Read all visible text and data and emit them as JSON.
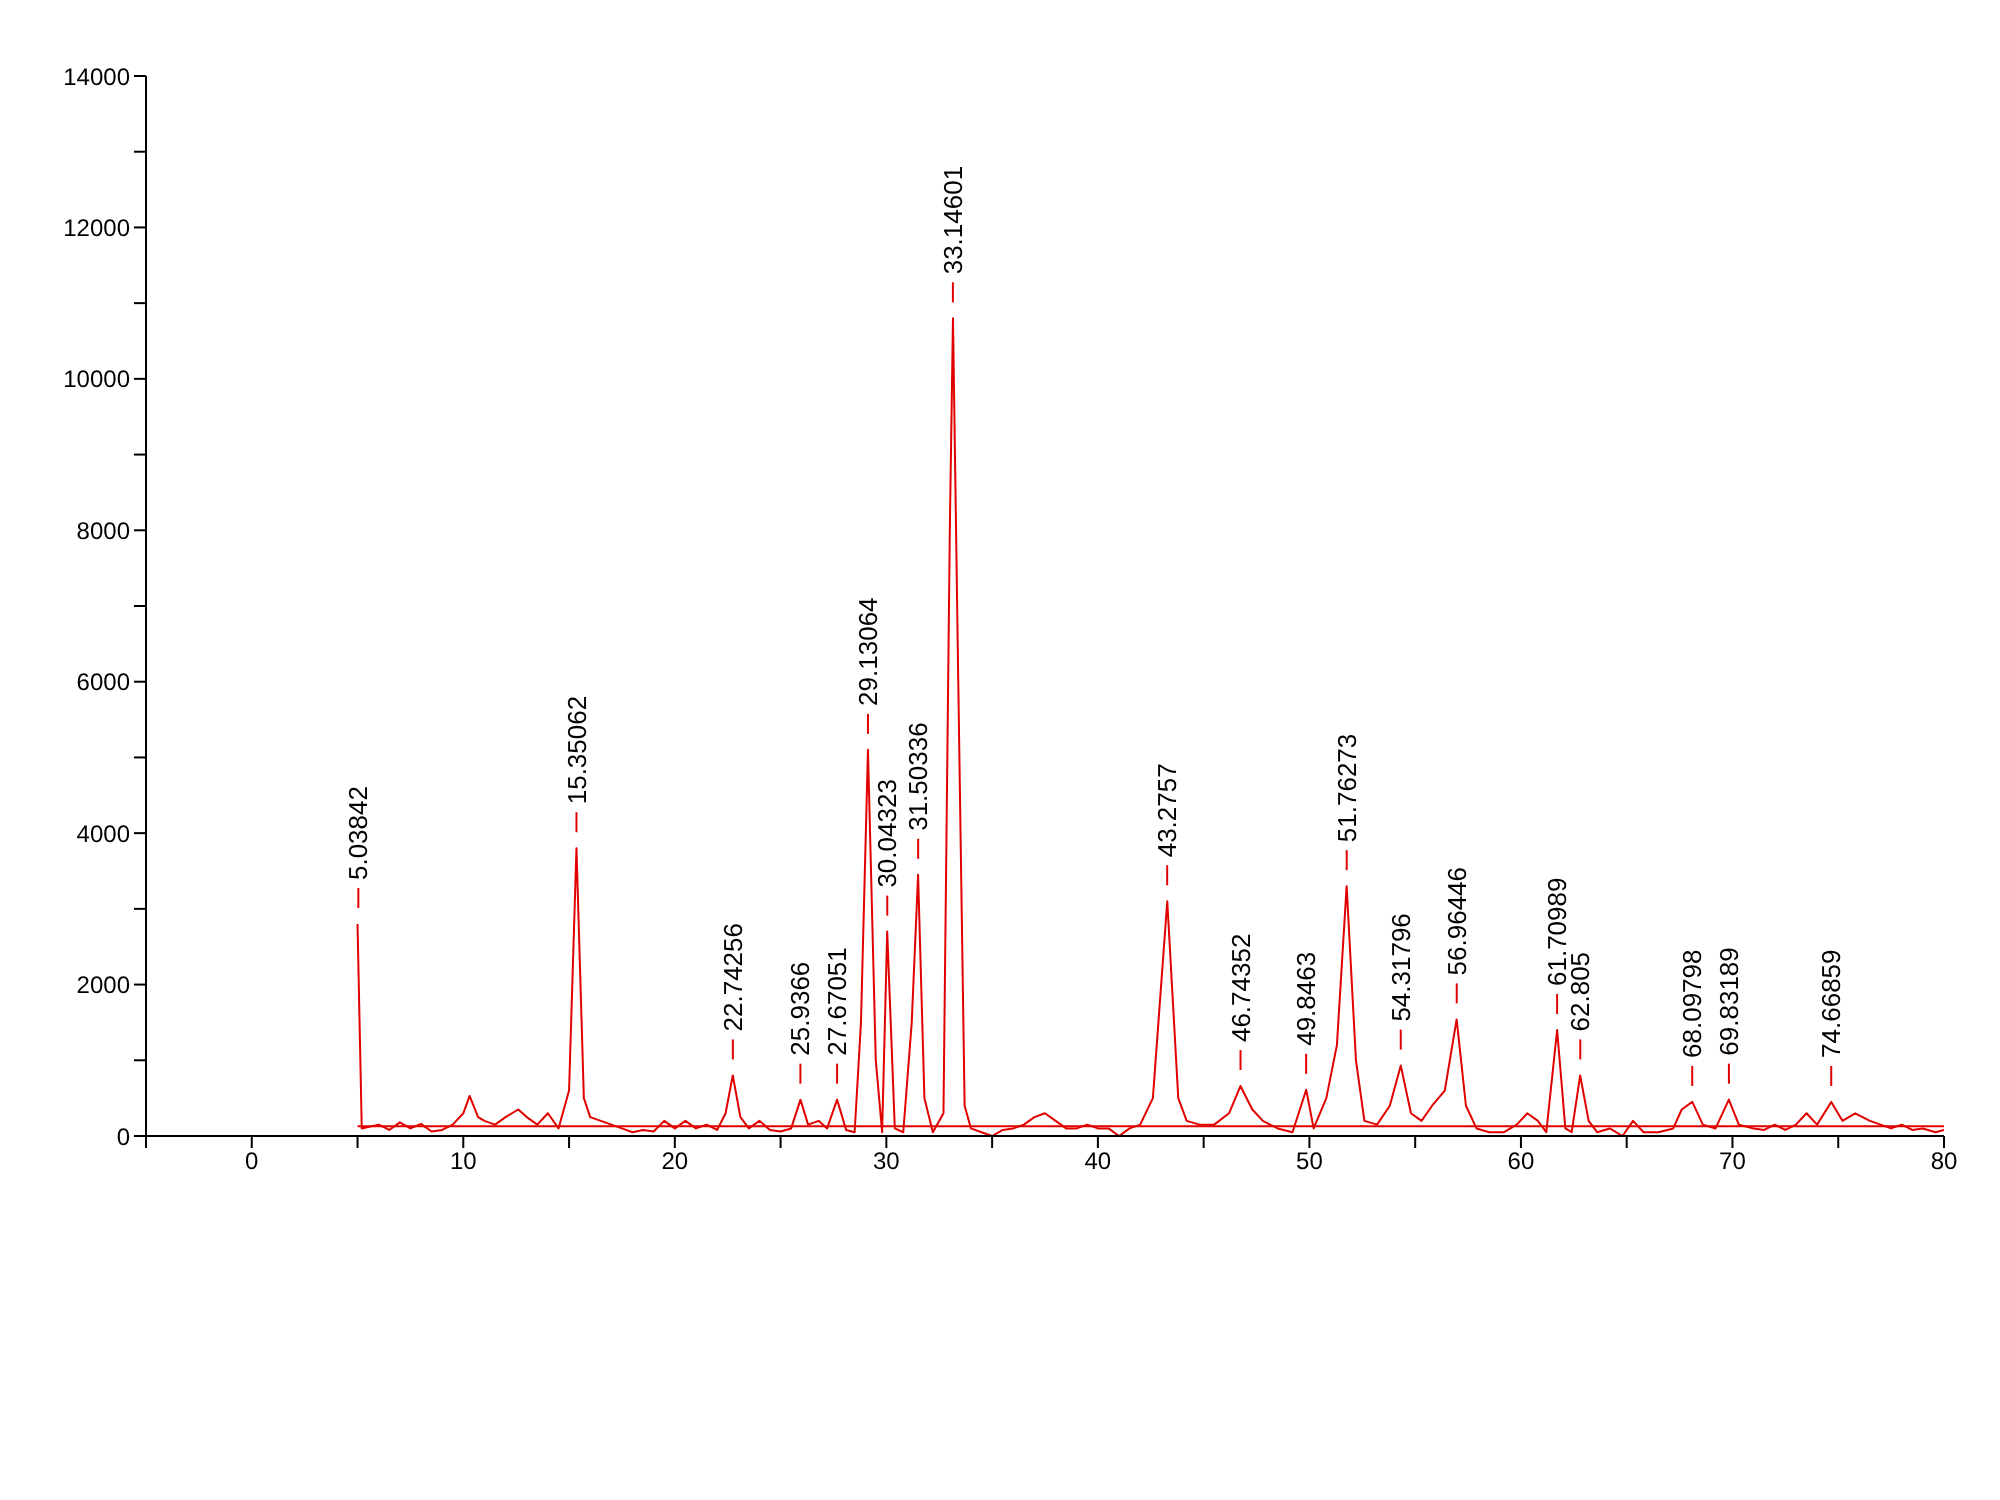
{
  "chart_data": {
    "type": "line",
    "xlim": [
      -5,
      80
    ],
    "ylim": [
      0,
      14000
    ],
    "xticks": [
      {
        "value": -5,
        "label": null
      },
      0,
      {
        "value": 5,
        "label": null
      },
      10,
      {
        "value": 15,
        "label": null
      },
      20,
      {
        "value": 25,
        "label": null
      },
      30,
      {
        "value": 35,
        "label": null
      },
      40,
      {
        "value": 45,
        "label": null
      },
      50,
      {
        "value": 55,
        "label": null
      },
      60,
      {
        "value": 65,
        "label": null
      },
      70,
      {
        "value": 75,
        "label": null
      },
      80
    ],
    "yticks": [
      0,
      {
        "value": 1000,
        "label": null
      },
      2000,
      {
        "value": 3000,
        "label": null
      },
      4000,
      {
        "value": 5000,
        "label": null
      },
      6000,
      {
        "value": 7000,
        "label": null
      },
      8000,
      {
        "value": 9000,
        "label": null
      },
      10000,
      {
        "value": 11000,
        "label": null
      },
      12000,
      {
        "value": 13000,
        "label": null
      },
      14000
    ],
    "grid": false,
    "legend": false,
    "marker": "none",
    "line_style": "solid",
    "series": [
      {
        "color": "#e00000",
        "x": [
          5.0,
          5.2,
          6,
          6.5,
          7,
          7.5,
          8,
          8.5,
          9,
          9.5,
          10,
          10.3,
          10.7,
          11,
          11.5,
          12,
          12.6,
          13,
          13.5,
          14,
          14.5,
          15,
          15.35,
          15.7,
          16,
          16.5,
          17,
          17.5,
          18,
          18.5,
          19,
          19.5,
          20,
          20.5,
          21,
          21.5,
          22,
          22.4,
          22.74,
          23.1,
          23.5,
          24,
          24.5,
          25,
          25.5,
          25.94,
          26.3,
          26.8,
          27.2,
          27.67,
          28.1,
          28.5,
          28.8,
          29.13,
          29.5,
          29.8,
          30.04,
          30.4,
          30.8,
          31.2,
          31.5,
          31.8,
          32.2,
          32.7,
          33.0,
          33.15,
          33.4,
          33.7,
          34,
          34.5,
          35,
          35.5,
          36,
          36.5,
          37,
          37.5,
          38,
          38.5,
          39,
          39.5,
          40,
          40.5,
          41,
          41.5,
          42,
          42.6,
          43.28,
          43.8,
          44.2,
          44.8,
          45.5,
          46.2,
          46.74,
          47.3,
          47.8,
          48.5,
          49.2,
          49.85,
          50.2,
          50.8,
          51.3,
          51.76,
          52.2,
          52.6,
          53.2,
          53.8,
          54.32,
          54.8,
          55.3,
          55.8,
          56.4,
          56.96,
          57.4,
          57.9,
          58.5,
          59.2,
          59.8,
          60.3,
          60.8,
          61.2,
          61.71,
          62.1,
          62.4,
          62.8,
          63.2,
          63.6,
          64.2,
          64.8,
          65.3,
          65.8,
          66.5,
          67.2,
          67.6,
          68.1,
          68.6,
          69.2,
          69.83,
          70.3,
          71,
          71.5,
          72,
          72.5,
          73,
          73.5,
          74,
          74.67,
          75.2,
          75.8,
          76.5,
          77,
          77.5,
          78,
          78.5,
          79,
          79.6,
          80
        ],
        "values": [
          2800,
          100,
          150,
          80,
          180,
          100,
          160,
          60,
          80,
          150,
          300,
          530,
          250,
          200,
          150,
          250,
          350,
          250,
          150,
          300,
          100,
          600,
          3800,
          500,
          250,
          200,
          150,
          100,
          50,
          80,
          60,
          200,
          100,
          200,
          100,
          150,
          80,
          300,
          800,
          250,
          100,
          200,
          80,
          60,
          100,
          480,
          150,
          200,
          100,
          480,
          80,
          50,
          1500,
          5100,
          1000,
          50,
          2700,
          100,
          50,
          1500,
          3450,
          500,
          50,
          300,
          8000,
          10800,
          6000,
          400,
          100,
          50,
          0,
          80,
          100,
          150,
          250,
          300,
          200,
          100,
          100,
          150,
          100,
          100,
          0,
          100,
          150,
          500,
          3100,
          500,
          200,
          150,
          150,
          300,
          660,
          350,
          200,
          100,
          50,
          610,
          100,
          500,
          1200,
          3300,
          1000,
          200,
          150,
          400,
          930,
          300,
          200,
          400,
          600,
          1540,
          400,
          100,
          50,
          50,
          150,
          300,
          200,
          50,
          1400,
          100,
          50,
          800,
          200,
          50,
          100,
          0,
          200,
          50,
          50,
          100,
          350,
          450,
          150,
          100,
          480,
          150,
          100,
          80,
          150,
          80,
          150,
          300,
          150,
          450,
          200,
          300,
          200,
          150,
          100,
          150,
          80,
          100,
          50,
          80
        ]
      },
      {
        "color": "#e00000",
        "x": [
          5,
          80
        ],
        "values": [
          130,
          130
        ]
      }
    ],
    "annotations": [
      {
        "text": "5.03842",
        "x": 5.03842,
        "y": 2800
      },
      {
        "text": "15.35062",
        "x": 15.35062,
        "y": 3800
      },
      {
        "text": "22.74256",
        "x": 22.74256,
        "y": 800
      },
      {
        "text": "25.9366",
        "x": 25.9366,
        "y": 480
      },
      {
        "text": "27.67051",
        "x": 27.67051,
        "y": 480
      },
      {
        "text": "29.13064",
        "x": 29.13064,
        "y": 5100
      },
      {
        "text": "30.04323",
        "x": 30.04323,
        "y": 2700
      },
      {
        "text": "31.50336",
        "x": 31.50336,
        "y": 3450
      },
      {
        "text": "33.14601",
        "x": 33.14601,
        "y": 10800
      },
      {
        "text": "43.2757",
        "x": 43.2757,
        "y": 3100
      },
      {
        "text": "46.74352",
        "x": 46.74352,
        "y": 660
      },
      {
        "text": "49.8463",
        "x": 49.8463,
        "y": 610
      },
      {
        "text": "51.76273",
        "x": 51.76273,
        "y": 3300
      },
      {
        "text": "54.31796",
        "x": 54.31796,
        "y": 930
      },
      {
        "text": "56.96446",
        "x": 56.96446,
        "y": 1540
      },
      {
        "text": "61.70989",
        "x": 61.70989,
        "y": 1400
      },
      {
        "text": "62.805",
        "x": 62.805,
        "y": 800
      },
      {
        "text": "68.09798",
        "x": 68.09798,
        "y": 450
      },
      {
        "text": "69.83189",
        "x": 69.83189,
        "y": 480
      },
      {
        "text": "74.66859",
        "x": 74.66859,
        "y": 450
      }
    ]
  }
}
